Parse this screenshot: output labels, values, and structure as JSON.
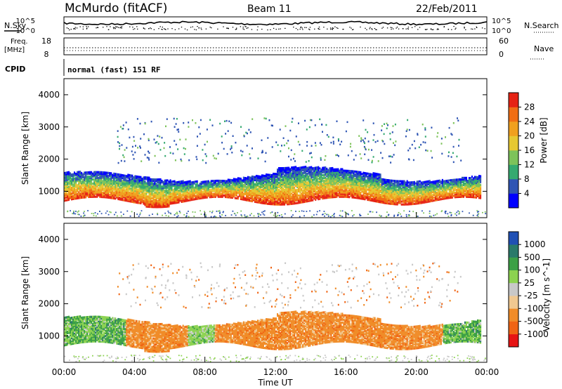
{
  "header": {
    "station": "McMurdo (fitACF)",
    "beam": "Beam 11",
    "date": "22/Feb/2011"
  },
  "left_labels": {
    "nsky": "N.Sky",
    "freq_line1": "Freq.",
    "freq_line2": "[MHz]",
    "cpid": "CPID"
  },
  "right_labels": {
    "nsearch": "N.Search",
    "nave": "Nave"
  },
  "cpid_text": "normal (fast) 151 RF",
  "noise_axis": {
    "tick_top": "10^5",
    "tick_bottom": "10^0"
  },
  "freq_axis": {
    "tick_top": "18",
    "tick_bottom": "8"
  },
  "nave_axis": {
    "tick_top": "60",
    "tick_bottom": "0"
  },
  "chart_data": [
    {
      "type": "heatmap",
      "title": "",
      "ylabel": "Slant Range [km]",
      "ylim": [
        180,
        4500
      ],
      "yticks": [
        "1000",
        "2000",
        "3000",
        "4000"
      ],
      "xlim_hours": [
        0,
        24
      ],
      "colorbar_label": "Power [dB]",
      "colorbar_ticks": [
        "4",
        "8",
        "12",
        "16",
        "20",
        "24",
        "28"
      ],
      "colorbar_colors": [
        "#0000ff",
        "#2f55b4",
        "#35aa70",
        "#7dc35a",
        "#e6c832",
        "#f0a01e",
        "#f06e14",
        "#e62314"
      ],
      "scatter_backscatter_bands_km": [
        {
          "x_hours": [
            0.0,
            23.5
          ],
          "range_km": [
            600,
            1700
          ],
          "note": "ionospheric"
        },
        {
          "x_hours": [
            3.0,
            22.5
          ],
          "range_km": [
            1900,
            3300
          ],
          "note": "sporadic"
        }
      ]
    },
    {
      "type": "heatmap",
      "title": "",
      "xlabel": "Time UT",
      "ylabel": "Slant Range [km]",
      "ylim": [
        180,
        4500
      ],
      "yticks": [
        "1000",
        "2000",
        "3000",
        "4000"
      ],
      "xticks": [
        "00:00",
        "04:00",
        "08:00",
        "12:00",
        "16:00",
        "20:00",
        "00:00"
      ],
      "colorbar_label": "Velocity [m s^-1]",
      "colorbar_ticks": [
        "1000",
        "500",
        "100",
        "25",
        "-25",
        "-100",
        "-500",
        "-1000"
      ],
      "colorbar_colors": [
        "#2050b4",
        "#2a7a6a",
        "#3ca046",
        "#8cd250",
        "#c8c8c8",
        "#f0c890",
        "#f08c28",
        "#f06414",
        "#e61414"
      ]
    }
  ]
}
